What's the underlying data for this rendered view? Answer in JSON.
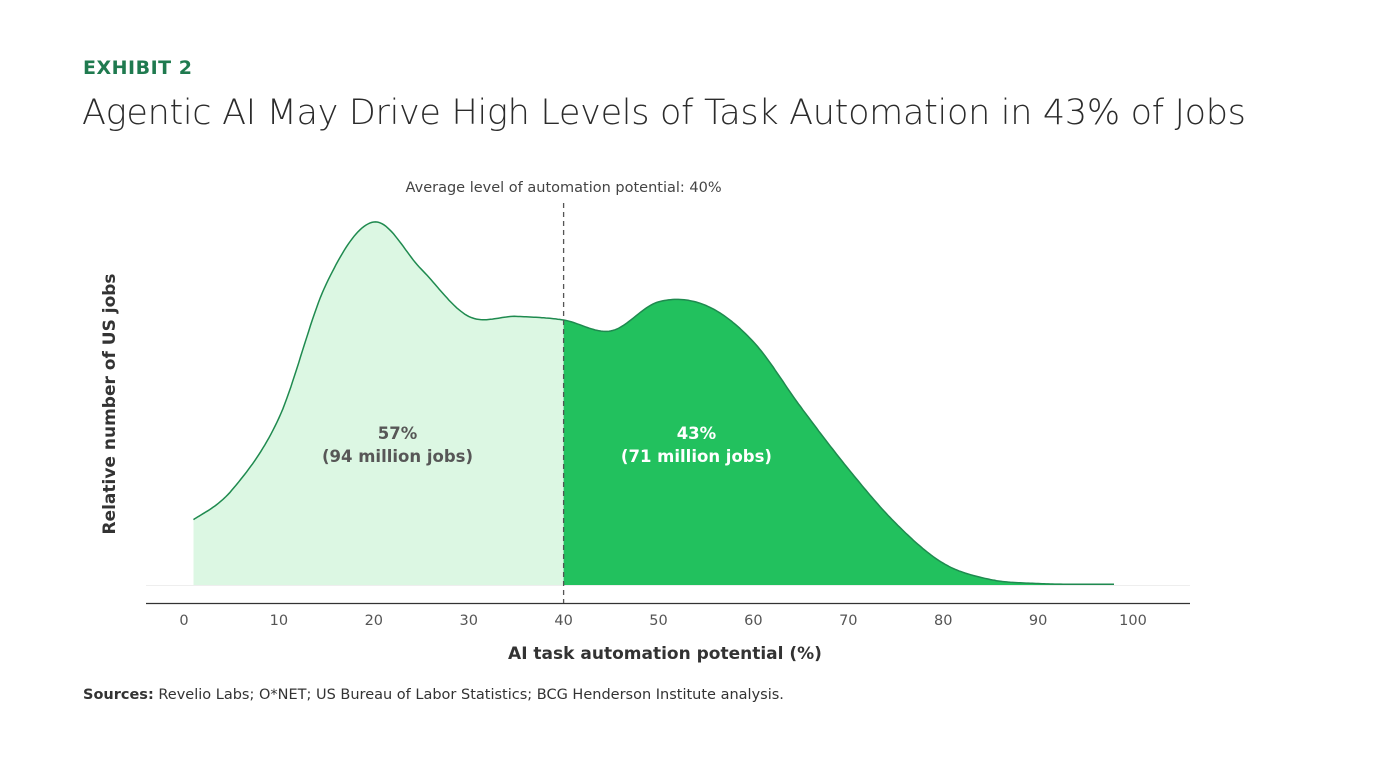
{
  "header": {
    "exhibit": "EXHIBIT 2",
    "title": "Agentic AI May Drive High Levels of Task Automation in 43% of Jobs"
  },
  "footer": {
    "sources_label": "Sources:",
    "sources_text": " Revelio Labs; O*NET; US Bureau of Labor Statistics; BCG Henderson Institute analysis."
  },
  "colors": {
    "light_fill": "#dcf7e3",
    "dark_fill": "#22c15e",
    "curve_stroke": "#1f8a4f",
    "axis": "#333333",
    "divider": "#555555"
  },
  "chart_data": {
    "type": "area",
    "title": "Agentic AI May Drive High Levels of Task Automation in 43% of Jobs",
    "xlabel": "AI task automation potential (%)",
    "ylabel": "Relative number of US jobs",
    "xlim": [
      0,
      100
    ],
    "ylim": [
      0,
      100
    ],
    "xticks": [
      0,
      10,
      20,
      30,
      40,
      50,
      60,
      70,
      80,
      90,
      100
    ],
    "x": [
      1,
      5,
      10,
      15,
      20,
      25,
      30,
      35,
      40,
      45,
      50,
      55,
      60,
      65,
      70,
      75,
      80,
      85,
      90,
      95,
      98
    ],
    "y": [
      18,
      26,
      46,
      83,
      100,
      87,
      74,
      74,
      73,
      70,
      78,
      77,
      67,
      49,
      32,
      17,
      6,
      1.5,
      0.4,
      0.2,
      0.2
    ],
    "divider_x": 40,
    "divider_label": "Average level of automation potential: 40%",
    "regions": [
      {
        "share": "57%",
        "jobs": "(94 million jobs)",
        "from": 1,
        "to": 40
      },
      {
        "share": "43%",
        "jobs": "(71 million jobs)",
        "from": 40,
        "to": 98
      }
    ]
  }
}
